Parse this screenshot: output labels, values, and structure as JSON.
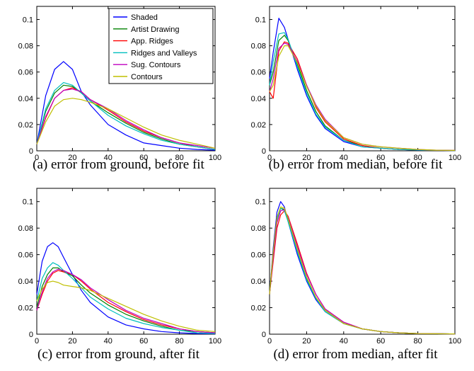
{
  "colors": {
    "Shaded": "#0000ff",
    "Artist Drawing": "#008000",
    "App. Ridges": "#ff0000",
    "Ridges and Valleys": "#00bfbf",
    "Sug. Contours": "#bf00bf",
    "Contours": "#bfbf00"
  },
  "legend": {
    "entries": [
      "Shaded",
      "Artist Drawing",
      "App. Ridges",
      "Ridges and Valleys",
      "Sug. Contours",
      "Contours"
    ],
    "placement": "top-right of panel (a)"
  },
  "chart_data": [
    {
      "id": "a",
      "type": "line",
      "caption": "(a) error from ground, before fit",
      "xlim": [
        0,
        100
      ],
      "ylim": [
        0,
        0.11
      ],
      "xticks": [
        "0",
        "20",
        "40",
        "60",
        "80",
        "100"
      ],
      "yticks": [
        "0",
        "0.02",
        "0.04",
        "0.06",
        "0.08",
        "0.1"
      ],
      "xticks_values": [
        0,
        20,
        40,
        60,
        80,
        100
      ],
      "yticks_values": [
        0,
        0.02,
        0.04,
        0.06,
        0.08,
        0.1
      ],
      "grid": false,
      "x": [
        0,
        5,
        10,
        15,
        20,
        25,
        30,
        40,
        50,
        60,
        70,
        80,
        90,
        100
      ],
      "series": [
        {
          "name": "Shaded",
          "values": [
            0.005,
            0.042,
            0.062,
            0.068,
            0.062,
            0.045,
            0.035,
            0.02,
            0.012,
            0.006,
            0.004,
            0.002,
            0.001,
            0.0005
          ]
        },
        {
          "name": "Artist Drawing",
          "values": [
            0.005,
            0.03,
            0.044,
            0.05,
            0.049,
            0.044,
            0.038,
            0.029,
            0.021,
            0.014,
            0.009,
            0.005,
            0.003,
            0.001
          ]
        },
        {
          "name": "App. Ridges",
          "values": [
            0.005,
            0.025,
            0.04,
            0.046,
            0.048,
            0.045,
            0.039,
            0.031,
            0.022,
            0.015,
            0.01,
            0.006,
            0.003,
            0.001
          ]
        },
        {
          "name": "Ridges and Valleys",
          "values": [
            0.005,
            0.032,
            0.046,
            0.052,
            0.05,
            0.044,
            0.038,
            0.027,
            0.019,
            0.013,
            0.008,
            0.005,
            0.003,
            0.001
          ]
        },
        {
          "name": "Sug. Contours",
          "values": [
            0.005,
            0.026,
            0.04,
            0.046,
            0.047,
            0.045,
            0.039,
            0.032,
            0.023,
            0.016,
            0.01,
            0.006,
            0.004,
            0.002
          ]
        },
        {
          "name": "Contours",
          "values": [
            0.005,
            0.022,
            0.034,
            0.039,
            0.04,
            0.039,
            0.037,
            0.032,
            0.025,
            0.018,
            0.012,
            0.008,
            0.005,
            0.002
          ]
        }
      ]
    },
    {
      "id": "b",
      "type": "line",
      "caption": "(b) error from median, before fit",
      "xlim": [
        0,
        100
      ],
      "ylim": [
        0,
        0.11
      ],
      "xticks": [
        "0",
        "20",
        "40",
        "60",
        "80",
        "100"
      ],
      "yticks": [
        "0",
        "0.02",
        "0.04",
        "0.06",
        "0.08",
        "0.1"
      ],
      "xticks_values": [
        0,
        20,
        40,
        60,
        80,
        100
      ],
      "yticks_values": [
        0,
        0.02,
        0.04,
        0.06,
        0.08,
        0.1
      ],
      "grid": false,
      "x": [
        0,
        2,
        5,
        8,
        10,
        15,
        20,
        25,
        30,
        40,
        50,
        60,
        70,
        80,
        90,
        100
      ],
      "series": [
        {
          "name": "Shaded",
          "values": [
            0.055,
            0.075,
            0.101,
            0.094,
            0.085,
            0.062,
            0.042,
            0.027,
            0.017,
            0.007,
            0.003,
            0.002,
            0.001,
            0.0005,
            0.0003,
            0.0002
          ]
        },
        {
          "name": "Artist Drawing",
          "values": [
            0.05,
            0.06,
            0.084,
            0.088,
            0.084,
            0.066,
            0.046,
            0.03,
            0.019,
            0.008,
            0.004,
            0.002,
            0.001,
            0.0006,
            0.0004,
            0.0002
          ]
        },
        {
          "name": "App. Ridges",
          "values": [
            0.045,
            0.04,
            0.076,
            0.083,
            0.082,
            0.07,
            0.05,
            0.033,
            0.022,
            0.009,
            0.004,
            0.002,
            0.001,
            0.0006,
            0.0004,
            0.0002
          ]
        },
        {
          "name": "Ridges and Valleys",
          "values": [
            0.05,
            0.068,
            0.089,
            0.09,
            0.085,
            0.064,
            0.044,
            0.028,
            0.018,
            0.008,
            0.003,
            0.002,
            0.001,
            0.0006,
            0.0004,
            0.0002
          ]
        },
        {
          "name": "Sug. Contours",
          "values": [
            0.045,
            0.055,
            0.078,
            0.082,
            0.081,
            0.068,
            0.05,
            0.035,
            0.024,
            0.01,
            0.005,
            0.003,
            0.002,
            0.001,
            0.0005,
            0.0003
          ]
        },
        {
          "name": "Contours",
          "values": [
            0.045,
            0.05,
            0.072,
            0.08,
            0.08,
            0.067,
            0.049,
            0.034,
            0.023,
            0.01,
            0.005,
            0.003,
            0.002,
            0.001,
            0.0005,
            0.0003
          ]
        }
      ]
    },
    {
      "id": "c",
      "type": "line",
      "caption": "(c) error from ground, after fit",
      "xlim": [
        0,
        100
      ],
      "ylim": [
        0,
        0.11
      ],
      "xticks": [
        "0",
        "20",
        "40",
        "60",
        "80",
        "100"
      ],
      "yticks": [
        "0",
        "0.02",
        "0.04",
        "0.06",
        "0.08",
        "0.1"
      ],
      "xticks_values": [
        0,
        20,
        40,
        60,
        80,
        100
      ],
      "yticks_values": [
        0,
        0.02,
        0.04,
        0.06,
        0.08,
        0.1
      ],
      "grid": false,
      "x": [
        0,
        3,
        6,
        9,
        12,
        15,
        20,
        25,
        30,
        40,
        50,
        60,
        70,
        80,
        90,
        100
      ],
      "series": [
        {
          "name": "Shaded",
          "values": [
            0.03,
            0.055,
            0.066,
            0.069,
            0.066,
            0.058,
            0.045,
            0.033,
            0.024,
            0.013,
            0.007,
            0.004,
            0.002,
            0.001,
            0.0005,
            0.0003
          ]
        },
        {
          "name": "Artist Drawing",
          "values": [
            0.02,
            0.036,
            0.045,
            0.05,
            0.05,
            0.047,
            0.044,
            0.037,
            0.031,
            0.022,
            0.015,
            0.01,
            0.006,
            0.003,
            0.002,
            0.001
          ]
        },
        {
          "name": "App. Ridges",
          "values": [
            0.018,
            0.03,
            0.04,
            0.046,
            0.048,
            0.047,
            0.045,
            0.04,
            0.034,
            0.024,
            0.017,
            0.011,
            0.007,
            0.004,
            0.002,
            0.001
          ]
        },
        {
          "name": "Ridges and Valleys",
          "values": [
            0.025,
            0.042,
            0.05,
            0.054,
            0.052,
            0.048,
            0.042,
            0.035,
            0.028,
            0.019,
            0.012,
            0.008,
            0.005,
            0.003,
            0.001,
            0.0005
          ]
        },
        {
          "name": "Sug. Contours",
          "values": [
            0.018,
            0.032,
            0.042,
            0.047,
            0.049,
            0.048,
            0.045,
            0.041,
            0.035,
            0.026,
            0.018,
            0.012,
            0.008,
            0.004,
            0.002,
            0.001
          ]
        },
        {
          "name": "Contours",
          "values": [
            0.025,
            0.034,
            0.039,
            0.04,
            0.039,
            0.037,
            0.036,
            0.035,
            0.033,
            0.027,
            0.021,
            0.015,
            0.01,
            0.006,
            0.003,
            0.002
          ]
        }
      ]
    },
    {
      "id": "d",
      "type": "line",
      "caption": "(d) error from median, after fit",
      "xlim": [
        0,
        100
      ],
      "ylim": [
        0,
        0.11
      ],
      "xticks": [
        "0",
        "20",
        "40",
        "60",
        "80",
        "100"
      ],
      "yticks": [
        "0",
        "0.02",
        "0.04",
        "0.06",
        "0.08",
        "0.1"
      ],
      "xticks_values": [
        0,
        20,
        40,
        60,
        80,
        100
      ],
      "yticks_values": [
        0,
        0.02,
        0.04,
        0.06,
        0.08,
        0.1
      ],
      "grid": false,
      "x": [
        0,
        2,
        4,
        6,
        8,
        10,
        15,
        20,
        25,
        30,
        40,
        50,
        60,
        70,
        80,
        90,
        100
      ],
      "series": [
        {
          "name": "Shaded",
          "values": [
            0.03,
            0.065,
            0.092,
            0.1,
            0.096,
            0.085,
            0.06,
            0.04,
            0.026,
            0.017,
            0.008,
            0.004,
            0.002,
            0.001,
            0.0005,
            0.0003,
            0.0002
          ]
        },
        {
          "name": "Artist Drawing",
          "values": [
            0.03,
            0.062,
            0.088,
            0.095,
            0.094,
            0.086,
            0.063,
            0.042,
            0.027,
            0.018,
            0.008,
            0.004,
            0.002,
            0.001,
            0.0005,
            0.0003,
            0.0002
          ]
        },
        {
          "name": "App. Ridges",
          "values": [
            0.03,
            0.055,
            0.08,
            0.09,
            0.093,
            0.089,
            0.068,
            0.046,
            0.03,
            0.019,
            0.009,
            0.004,
            0.002,
            0.001,
            0.0005,
            0.0003,
            0.0002
          ]
        },
        {
          "name": "Ridges and Valleys",
          "values": [
            0.03,
            0.06,
            0.086,
            0.095,
            0.093,
            0.085,
            0.062,
            0.041,
            0.027,
            0.017,
            0.008,
            0.004,
            0.002,
            0.001,
            0.0005,
            0.0003,
            0.0002
          ]
        },
        {
          "name": "Sug. Contours",
          "values": [
            0.03,
            0.058,
            0.084,
            0.093,
            0.094,
            0.088,
            0.066,
            0.045,
            0.03,
            0.019,
            0.009,
            0.004,
            0.002,
            0.001,
            0.0005,
            0.0003,
            0.0002
          ]
        },
        {
          "name": "Contours",
          "values": [
            0.03,
            0.062,
            0.088,
            0.096,
            0.095,
            0.087,
            0.064,
            0.043,
            0.028,
            0.018,
            0.008,
            0.004,
            0.002,
            0.001,
            0.0005,
            0.0003,
            0.0002
          ]
        }
      ]
    }
  ]
}
